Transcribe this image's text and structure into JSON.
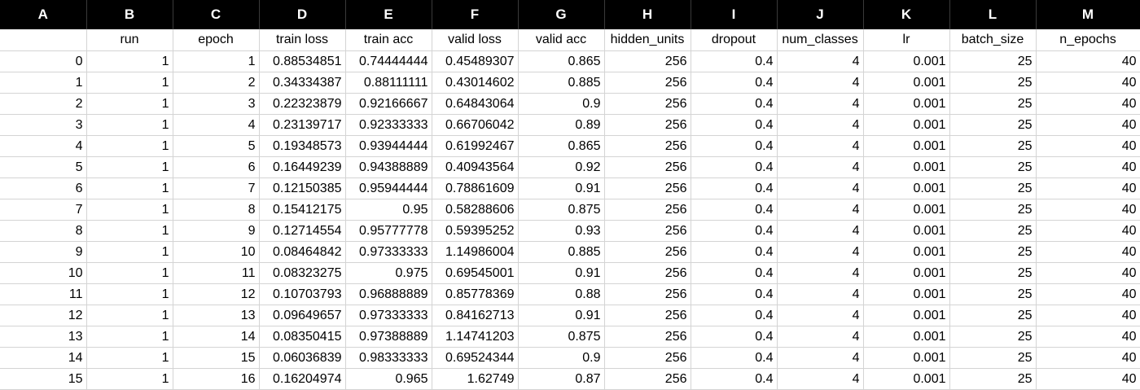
{
  "column_letters": [
    "A",
    "B",
    "C",
    "D",
    "E",
    "F",
    "G",
    "H",
    "I",
    "J",
    "K",
    "L",
    "M"
  ],
  "headers": [
    "",
    "run",
    "epoch",
    "train loss",
    "train acc",
    "valid loss",
    "valid acc",
    "hidden_units",
    "dropout",
    "num_classes",
    "lr",
    "batch_size",
    "n_epochs"
  ],
  "rows": [
    [
      "0",
      "1",
      "1",
      "0.88534851",
      "0.74444444",
      "0.45489307",
      "0.865",
      "256",
      "0.4",
      "4",
      "0.001",
      "25",
      "40"
    ],
    [
      "1",
      "1",
      "2",
      "0.34334387",
      "0.88111111",
      "0.43014602",
      "0.885",
      "256",
      "0.4",
      "4",
      "0.001",
      "25",
      "40"
    ],
    [
      "2",
      "1",
      "3",
      "0.22323879",
      "0.92166667",
      "0.64843064",
      "0.9",
      "256",
      "0.4",
      "4",
      "0.001",
      "25",
      "40"
    ],
    [
      "3",
      "1",
      "4",
      "0.23139717",
      "0.92333333",
      "0.66706042",
      "0.89",
      "256",
      "0.4",
      "4",
      "0.001",
      "25",
      "40"
    ],
    [
      "4",
      "1",
      "5",
      "0.19348573",
      "0.93944444",
      "0.61992467",
      "0.865",
      "256",
      "0.4",
      "4",
      "0.001",
      "25",
      "40"
    ],
    [
      "5",
      "1",
      "6",
      "0.16449239",
      "0.94388889",
      "0.40943564",
      "0.92",
      "256",
      "0.4",
      "4",
      "0.001",
      "25",
      "40"
    ],
    [
      "6",
      "1",
      "7",
      "0.12150385",
      "0.95944444",
      "0.78861609",
      "0.91",
      "256",
      "0.4",
      "4",
      "0.001",
      "25",
      "40"
    ],
    [
      "7",
      "1",
      "8",
      "0.15412175",
      "0.95",
      "0.58288606",
      "0.875",
      "256",
      "0.4",
      "4",
      "0.001",
      "25",
      "40"
    ],
    [
      "8",
      "1",
      "9",
      "0.12714554",
      "0.95777778",
      "0.59395252",
      "0.93",
      "256",
      "0.4",
      "4",
      "0.001",
      "25",
      "40"
    ],
    [
      "9",
      "1",
      "10",
      "0.08464842",
      "0.97333333",
      "1.14986004",
      "0.885",
      "256",
      "0.4",
      "4",
      "0.001",
      "25",
      "40"
    ],
    [
      "10",
      "1",
      "11",
      "0.08323275",
      "0.975",
      "0.69545001",
      "0.91",
      "256",
      "0.4",
      "4",
      "0.001",
      "25",
      "40"
    ],
    [
      "11",
      "1",
      "12",
      "0.10703793",
      "0.96888889",
      "0.85778369",
      "0.88",
      "256",
      "0.4",
      "4",
      "0.001",
      "25",
      "40"
    ],
    [
      "12",
      "1",
      "13",
      "0.09649657",
      "0.97333333",
      "0.84162713",
      "0.91",
      "256",
      "0.4",
      "4",
      "0.001",
      "25",
      "40"
    ],
    [
      "13",
      "1",
      "14",
      "0.08350415",
      "0.97388889",
      "1.14741203",
      "0.875",
      "256",
      "0.4",
      "4",
      "0.001",
      "25",
      "40"
    ],
    [
      "14",
      "1",
      "15",
      "0.06036839",
      "0.98333333",
      "0.69524344",
      "0.9",
      "256",
      "0.4",
      "4",
      "0.001",
      "25",
      "40"
    ],
    [
      "15",
      "1",
      "16",
      "0.16204974",
      "0.965",
      "1.62749",
      "0.87",
      "256",
      "0.4",
      "4",
      "0.001",
      "25",
      "40"
    ]
  ],
  "colors": {
    "column_header_bg": "#000000",
    "column_header_text": "#ffffff",
    "gridline": "#d4d4d4",
    "cell_text": "#000000"
  }
}
